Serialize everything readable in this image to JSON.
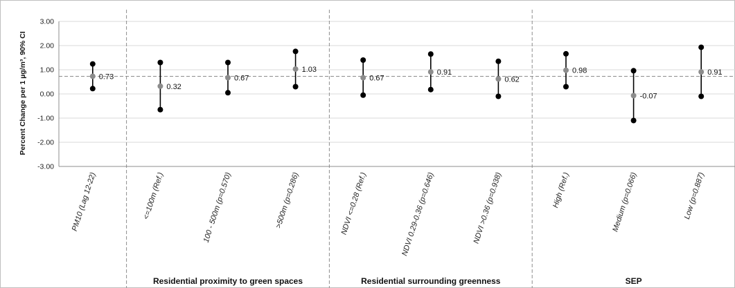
{
  "chart_data": {
    "type": "scatter",
    "ylabel": "Percent Change per 1 µg/m³, 90% CI",
    "ylim": [
      -3,
      3
    ],
    "yticks": [
      "3.00",
      "2.00",
      "1.00",
      "0.00",
      "-1.00",
      "-2.00",
      "-3.00"
    ],
    "ytick_values": [
      3,
      2,
      1,
      0,
      -1,
      -2,
      -3
    ],
    "reference_line": 0.73,
    "categories": [
      "PM10 (Lag 12-22)",
      "<=100m (Ref.)",
      "100 - 500m (p=0.570)",
      ">500m (p=0.286)",
      "NDVI <=0.28 (Ref.)",
      "NDVI 0.29-0.36 (p=0.646)",
      "NDVI >0.36 (p=0.938)",
      "High (Ref.)",
      "Medium (p=0.066)",
      "Low (p=0.887)"
    ],
    "estimates": [
      0.73,
      0.32,
      0.67,
      1.03,
      0.67,
      0.91,
      0.62,
      0.98,
      -0.07,
      0.91
    ],
    "estimate_labels": [
      "0.73",
      "0.32",
      "0.67",
      "1.03",
      "0.67",
      "0.91",
      "0.62",
      "0.98",
      "-0.07",
      "0.91"
    ],
    "lower": [
      0.22,
      -0.65,
      0.05,
      0.3,
      -0.05,
      0.18,
      -0.1,
      0.3,
      -1.1,
      -0.1
    ],
    "upper": [
      1.24,
      1.3,
      1.3,
      1.76,
      1.4,
      1.65,
      1.35,
      1.66,
      0.96,
      1.93
    ],
    "groups": [
      {
        "label": "",
        "start": 0,
        "end": 0
      },
      {
        "label": "Residential proximity to green spaces",
        "start": 1,
        "end": 3
      },
      {
        "label": "Residential surrounding greenness",
        "start": 4,
        "end": 6
      },
      {
        "label": "SEP",
        "start": 7,
        "end": 9
      }
    ],
    "grid": true,
    "legend": "none",
    "colors": {
      "estimate": "#8c8c8c",
      "bound": "#000000",
      "ci_line": "#000000",
      "reference_line": "#8c8c8c",
      "separator": "#8c8c8c",
      "grid": "#d9d9d9"
    }
  }
}
